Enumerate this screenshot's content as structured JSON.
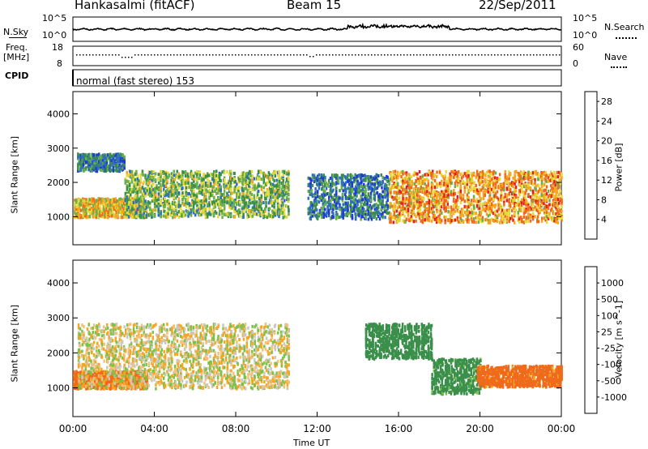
{
  "header": {
    "station": "Hankasalmi (fitACF)",
    "beam": "Beam 15",
    "date": "22/Sep/2011"
  },
  "top_strip": {
    "nsky_label": "N.Sky",
    "nsky_ticks": [
      "10^5",
      "10^0"
    ],
    "nsearch_label": "N.Search",
    "nsearch_ticks": [
      "10^5",
      "10^0"
    ],
    "freq_label_1": "Freq.",
    "freq_label_2": "[MHz]",
    "freq_ticks": [
      "18",
      "8"
    ],
    "nave_label": "Nave",
    "nave_ticks": [
      "60",
      "0"
    ],
    "cpid_label": "CPID",
    "cpid_text": "normal (fast stereo) 153"
  },
  "colors": {
    "power_scale": [
      "#1e3ad8",
      "#2f6cc4",
      "#3a8f4a",
      "#6ab04c",
      "#e6d93a",
      "#f5a623",
      "#ef6a1a",
      "#e31d1d"
    ],
    "velocity_scale": [
      "#e31d1d",
      "#ef6a1a",
      "#f5a623",
      "#f2c27a",
      "#c8c8c0",
      "#7cc14a",
      "#3a8f4a",
      "#2f6cc4",
      "#1e3ad8"
    ],
    "ground_scatter": "#c8c8c0"
  },
  "chart_data": [
    {
      "type": "heatmap",
      "title": "",
      "xlabel": "Time UT",
      "ylabel": "Slant Range [km]",
      "x_ticks": [
        "00:00",
        "04:00",
        "08:00",
        "12:00",
        "16:00",
        "20:00",
        "00:00"
      ],
      "y_ticks": [
        "1000",
        "2000",
        "3000",
        "4000"
      ],
      "xlim_hours": [
        0,
        24
      ],
      "ylim_km": [
        180,
        4650
      ],
      "colorbar_label": "Power [dB]",
      "colorbar_ticks": [
        "4",
        "8",
        "12",
        "16",
        "20",
        "24",
        "28"
      ],
      "colorbar_range": [
        0,
        30
      ],
      "grid": false,
      "echo_bands": [
        {
          "t_start": 0.0,
          "t_end": 3.6,
          "range_low": 950,
          "range_high": 1500,
          "power_db": 26
        },
        {
          "t_start": 0.2,
          "t_end": 2.5,
          "range_low": 2300,
          "range_high": 2800,
          "power_db": 14
        },
        {
          "t_start": 2.5,
          "t_end": 10.6,
          "range_low": 950,
          "range_high": 2300,
          "power_db": 20
        },
        {
          "t_start": 11.5,
          "t_end": 15.5,
          "range_low": 900,
          "range_high": 2200,
          "power_db": 14
        },
        {
          "t_start": 15.5,
          "t_end": 24.0,
          "range_low": 800,
          "range_high": 2300,
          "power_db": 28
        }
      ]
    },
    {
      "type": "heatmap",
      "title": "",
      "xlabel": "Time UT",
      "ylabel": "Slant Range [km]",
      "x_ticks": [
        "00:00",
        "04:00",
        "08:00",
        "12:00",
        "16:00",
        "20:00",
        "00:00"
      ],
      "y_ticks": [
        "1000",
        "2000",
        "3000",
        "4000"
      ],
      "xlim_hours": [
        0,
        24
      ],
      "ylim_km": [
        180,
        4650
      ],
      "colorbar_label": "Velocity [m s^-1]",
      "colorbar_ticks": [
        "1000",
        "500",
        "100",
        "25",
        "-25",
        "-100",
        "-500",
        "-1000"
      ],
      "grid": false,
      "echo_bands": [
        {
          "t_start": 0.0,
          "t_end": 3.6,
          "range_low": 950,
          "range_high": 1450,
          "velocity": -150
        },
        {
          "t_start": 0.2,
          "t_end": 10.6,
          "range_low": 950,
          "range_high": 2800,
          "velocity": 0
        },
        {
          "t_start": 14.3,
          "t_end": 17.6,
          "range_low": 1800,
          "range_high": 2800,
          "velocity": 200
        },
        {
          "t_start": 17.6,
          "t_end": 20.0,
          "range_low": 800,
          "range_high": 1800,
          "velocity": 150
        },
        {
          "t_start": 19.8,
          "t_end": 24.0,
          "range_low": 1000,
          "range_high": 1600,
          "velocity": -150
        }
      ]
    }
  ]
}
